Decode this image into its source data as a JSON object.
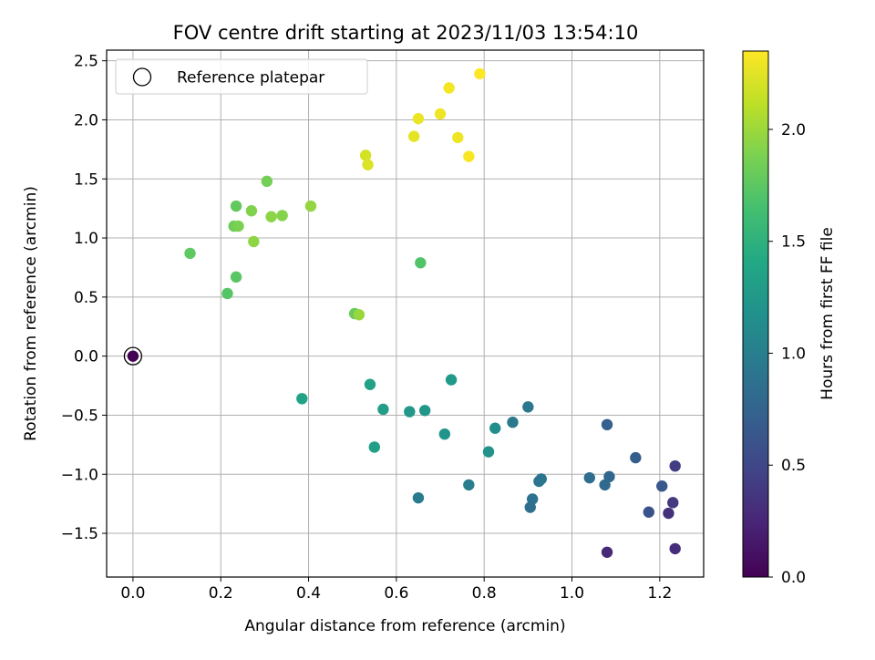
{
  "chart_data": {
    "type": "scatter",
    "title": "FOV centre drift starting at 2023/11/03 13:54:10",
    "xlabel": "Angular distance from reference (arcmin)",
    "ylabel": "Rotation from reference (arcmin)",
    "xlim": [
      -0.06,
      1.3
    ],
    "ylim": [
      -1.87,
      2.59
    ],
    "xticks": [
      "0.0",
      "0.2",
      "0.4",
      "0.6",
      "0.8",
      "1.0",
      "1.2"
    ],
    "xtick_values": [
      0.0,
      0.2,
      0.4,
      0.6,
      0.8,
      1.0,
      1.2
    ],
    "yticks": [
      "−1.5",
      "−1.0",
      "−0.5",
      "0.0",
      "0.5",
      "1.0",
      "1.5",
      "2.0",
      "2.5"
    ],
    "ytick_values": [
      -1.5,
      -1.0,
      -0.5,
      0.0,
      0.5,
      1.0,
      1.5,
      2.0,
      2.5
    ],
    "grid": true,
    "legend": {
      "placement": "upper left",
      "entries": [
        "Reference platepar"
      ]
    },
    "reference_point": {
      "x": 0.0,
      "y": 0.0,
      "value": 0.0
    },
    "colorbar": {
      "label": "Hours from first FF file",
      "range": [
        0.0,
        2.35
      ],
      "ticks": [
        "0.0",
        "0.5",
        "1.0",
        "1.5",
        "2.0"
      ],
      "tick_values": [
        0.0,
        0.5,
        1.0,
        1.5,
        2.0
      ],
      "colormap": "viridis"
    },
    "points": [
      {
        "x": 1.08,
        "y": -1.66,
        "value": 0.27
      },
      {
        "x": 1.235,
        "y": -1.63,
        "value": 0.3
      },
      {
        "x": 1.22,
        "y": -1.33,
        "value": 0.32
      },
      {
        "x": 1.23,
        "y": -1.24,
        "value": 0.38
      },
      {
        "x": 1.235,
        "y": -0.93,
        "value": 0.42
      },
      {
        "x": 1.175,
        "y": -1.32,
        "value": 0.6
      },
      {
        "x": 1.205,
        "y": -1.1,
        "value": 0.65
      },
      {
        "x": 1.145,
        "y": -0.86,
        "value": 0.7
      },
      {
        "x": 1.08,
        "y": -0.58,
        "value": 0.72
      },
      {
        "x": 1.085,
        "y": -1.02,
        "value": 0.78
      },
      {
        "x": 1.075,
        "y": -1.09,
        "value": 0.82
      },
      {
        "x": 1.04,
        "y": -1.03,
        "value": 0.85
      },
      {
        "x": 0.905,
        "y": -1.28,
        "value": 0.86
      },
      {
        "x": 0.91,
        "y": -1.21,
        "value": 0.88
      },
      {
        "x": 0.925,
        "y": -1.06,
        "value": 0.9
      },
      {
        "x": 0.93,
        "y": -1.04,
        "value": 0.92
      },
      {
        "x": 0.9,
        "y": -0.43,
        "value": 0.93
      },
      {
        "x": 0.865,
        "y": -0.56,
        "value": 0.95
      },
      {
        "x": 0.65,
        "y": -1.2,
        "value": 0.97
      },
      {
        "x": 0.765,
        "y": -1.09,
        "value": 1.0
      },
      {
        "x": 0.825,
        "y": -0.61,
        "value": 1.15
      },
      {
        "x": 0.81,
        "y": -0.81,
        "value": 1.2
      },
      {
        "x": 0.71,
        "y": -0.66,
        "value": 1.22
      },
      {
        "x": 0.665,
        "y": -0.46,
        "value": 1.24
      },
      {
        "x": 0.63,
        "y": -0.47,
        "value": 1.25
      },
      {
        "x": 0.725,
        "y": -0.2,
        "value": 1.27
      },
      {
        "x": 0.57,
        "y": -0.45,
        "value": 1.3
      },
      {
        "x": 0.55,
        "y": -0.77,
        "value": 1.32
      },
      {
        "x": 0.54,
        "y": -0.24,
        "value": 1.34
      },
      {
        "x": 0.385,
        "y": -0.36,
        "value": 1.36
      },
      {
        "x": 0.655,
        "y": 0.79,
        "value": 1.7
      },
      {
        "x": 0.215,
        "y": 0.53,
        "value": 1.72
      },
      {
        "x": 0.235,
        "y": 0.67,
        "value": 1.74
      },
      {
        "x": 0.13,
        "y": 0.87,
        "value": 1.76
      },
      {
        "x": 0.235,
        "y": 1.27,
        "value": 1.78
      },
      {
        "x": 0.505,
        "y": 0.36,
        "value": 1.8
      },
      {
        "x": 0.23,
        "y": 1.1,
        "value": 1.82
      },
      {
        "x": 0.305,
        "y": 1.48,
        "value": 1.85
      },
      {
        "x": 0.24,
        "y": 1.1,
        "value": 1.88
      },
      {
        "x": 0.27,
        "y": 1.23,
        "value": 1.9
      },
      {
        "x": 0.34,
        "y": 1.19,
        "value": 1.92
      },
      {
        "x": 0.315,
        "y": 1.18,
        "value": 1.94
      },
      {
        "x": 0.275,
        "y": 0.97,
        "value": 1.95
      },
      {
        "x": 0.405,
        "y": 1.27,
        "value": 1.97
      },
      {
        "x": 0.515,
        "y": 0.35,
        "value": 1.99
      },
      {
        "x": 0.53,
        "y": 1.7,
        "value": 2.2
      },
      {
        "x": 0.535,
        "y": 1.62,
        "value": 2.22
      },
      {
        "x": 0.64,
        "y": 1.86,
        "value": 2.26
      },
      {
        "x": 0.65,
        "y": 2.01,
        "value": 2.28
      },
      {
        "x": 0.7,
        "y": 2.05,
        "value": 2.3
      },
      {
        "x": 0.72,
        "y": 2.27,
        "value": 2.32
      },
      {
        "x": 0.74,
        "y": 1.85,
        "value": 2.3
      },
      {
        "x": 0.765,
        "y": 1.69,
        "value": 2.33
      },
      {
        "x": 0.79,
        "y": 2.39,
        "value": 2.35
      }
    ]
  }
}
